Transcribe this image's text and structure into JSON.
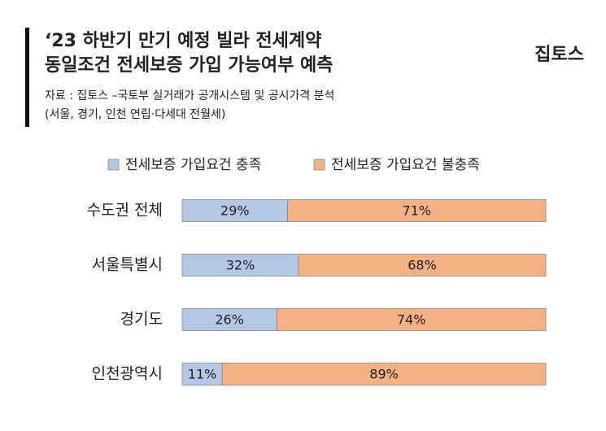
{
  "chart_data": {
    "type": "stacked_barh",
    "title": [
      "‘23 하반기 만기 예정 빌라 전세계약",
      "동일조건 전세보증 가입 가능여부 예측"
    ],
    "brand": "집토스",
    "source": [
      "자료 : 집토스 –국토부 실거래가 공개시스템 및 공시가격 분석",
      "(서울, 경기, 인천 연립·다세대 전월세)"
    ],
    "categories": [
      "수도권 전체",
      "서울특별시",
      "경기도",
      "인천광역시"
    ],
    "series": [
      {
        "name": "전세보증 가입요건 충족",
        "color": "#b4c7e7",
        "values": [
          29,
          32,
          26,
          11
        ],
        "value_labels": [
          "29%",
          "32%",
          "26%",
          "11%"
        ]
      },
      {
        "name": "전세보증 가입요건 불충족",
        "color": "#f4b183",
        "values": [
          71,
          68,
          74,
          89
        ],
        "value_labels": [
          "71%",
          "68%",
          "74%",
          "89%"
        ]
      }
    ],
    "xlim": [
      0,
      100
    ]
  }
}
